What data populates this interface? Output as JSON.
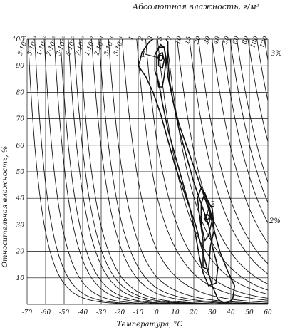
{
  "chart_data": {
    "type": "line",
    "title": "Абсолютная влажность, г/м³",
    "xlabel": "Температура, °С",
    "ylabel": "Относительная влажность, %",
    "xlim": [
      -70,
      60
    ],
    "ylim": [
      0,
      100
    ],
    "x_ticks": [
      -70,
      -60,
      -50,
      -40,
      -30,
      -20,
      -10,
      0,
      10,
      20,
      30,
      40,
      50,
      60
    ],
    "y_ticks": [
      10,
      20,
      30,
      40,
      50,
      60,
      70,
      80,
      90,
      100
    ],
    "absolute_humidity_labels": [
      "3·10⁻³",
      "5·10⁻³",
      "1·10⁻²",
      "2·10⁻²",
      "3·10⁻²",
      "5·10⁻²",
      "7·10⁻²",
      "1·10⁻¹",
      "2·10⁻¹",
      "3·10⁻¹",
      "5·10⁻¹",
      "1",
      "2",
      "3",
      "5",
      "7",
      "10",
      "15",
      "20",
      "30",
      "40",
      "50",
      "60",
      "80",
      "100",
      "120"
    ],
    "absolute_humidity_values": [
      0.003,
      0.005,
      0.01,
      0.02,
      0.03,
      0.05,
      0.07,
      0.1,
      0.2,
      0.3,
      0.5,
      1,
      2,
      3,
      5,
      7,
      10,
      15,
      20,
      30,
      40,
      50,
      60,
      80,
      100,
      120
    ],
    "contour_labels": [
      "3%",
      "2%"
    ],
    "region_labels": [
      "1",
      "2"
    ],
    "region_centers": [
      {
        "label": "1",
        "x": 2,
        "y": 93
      },
      {
        "label": "2",
        "x": 27,
        "y": 33
      }
    ],
    "grid": true
  }
}
